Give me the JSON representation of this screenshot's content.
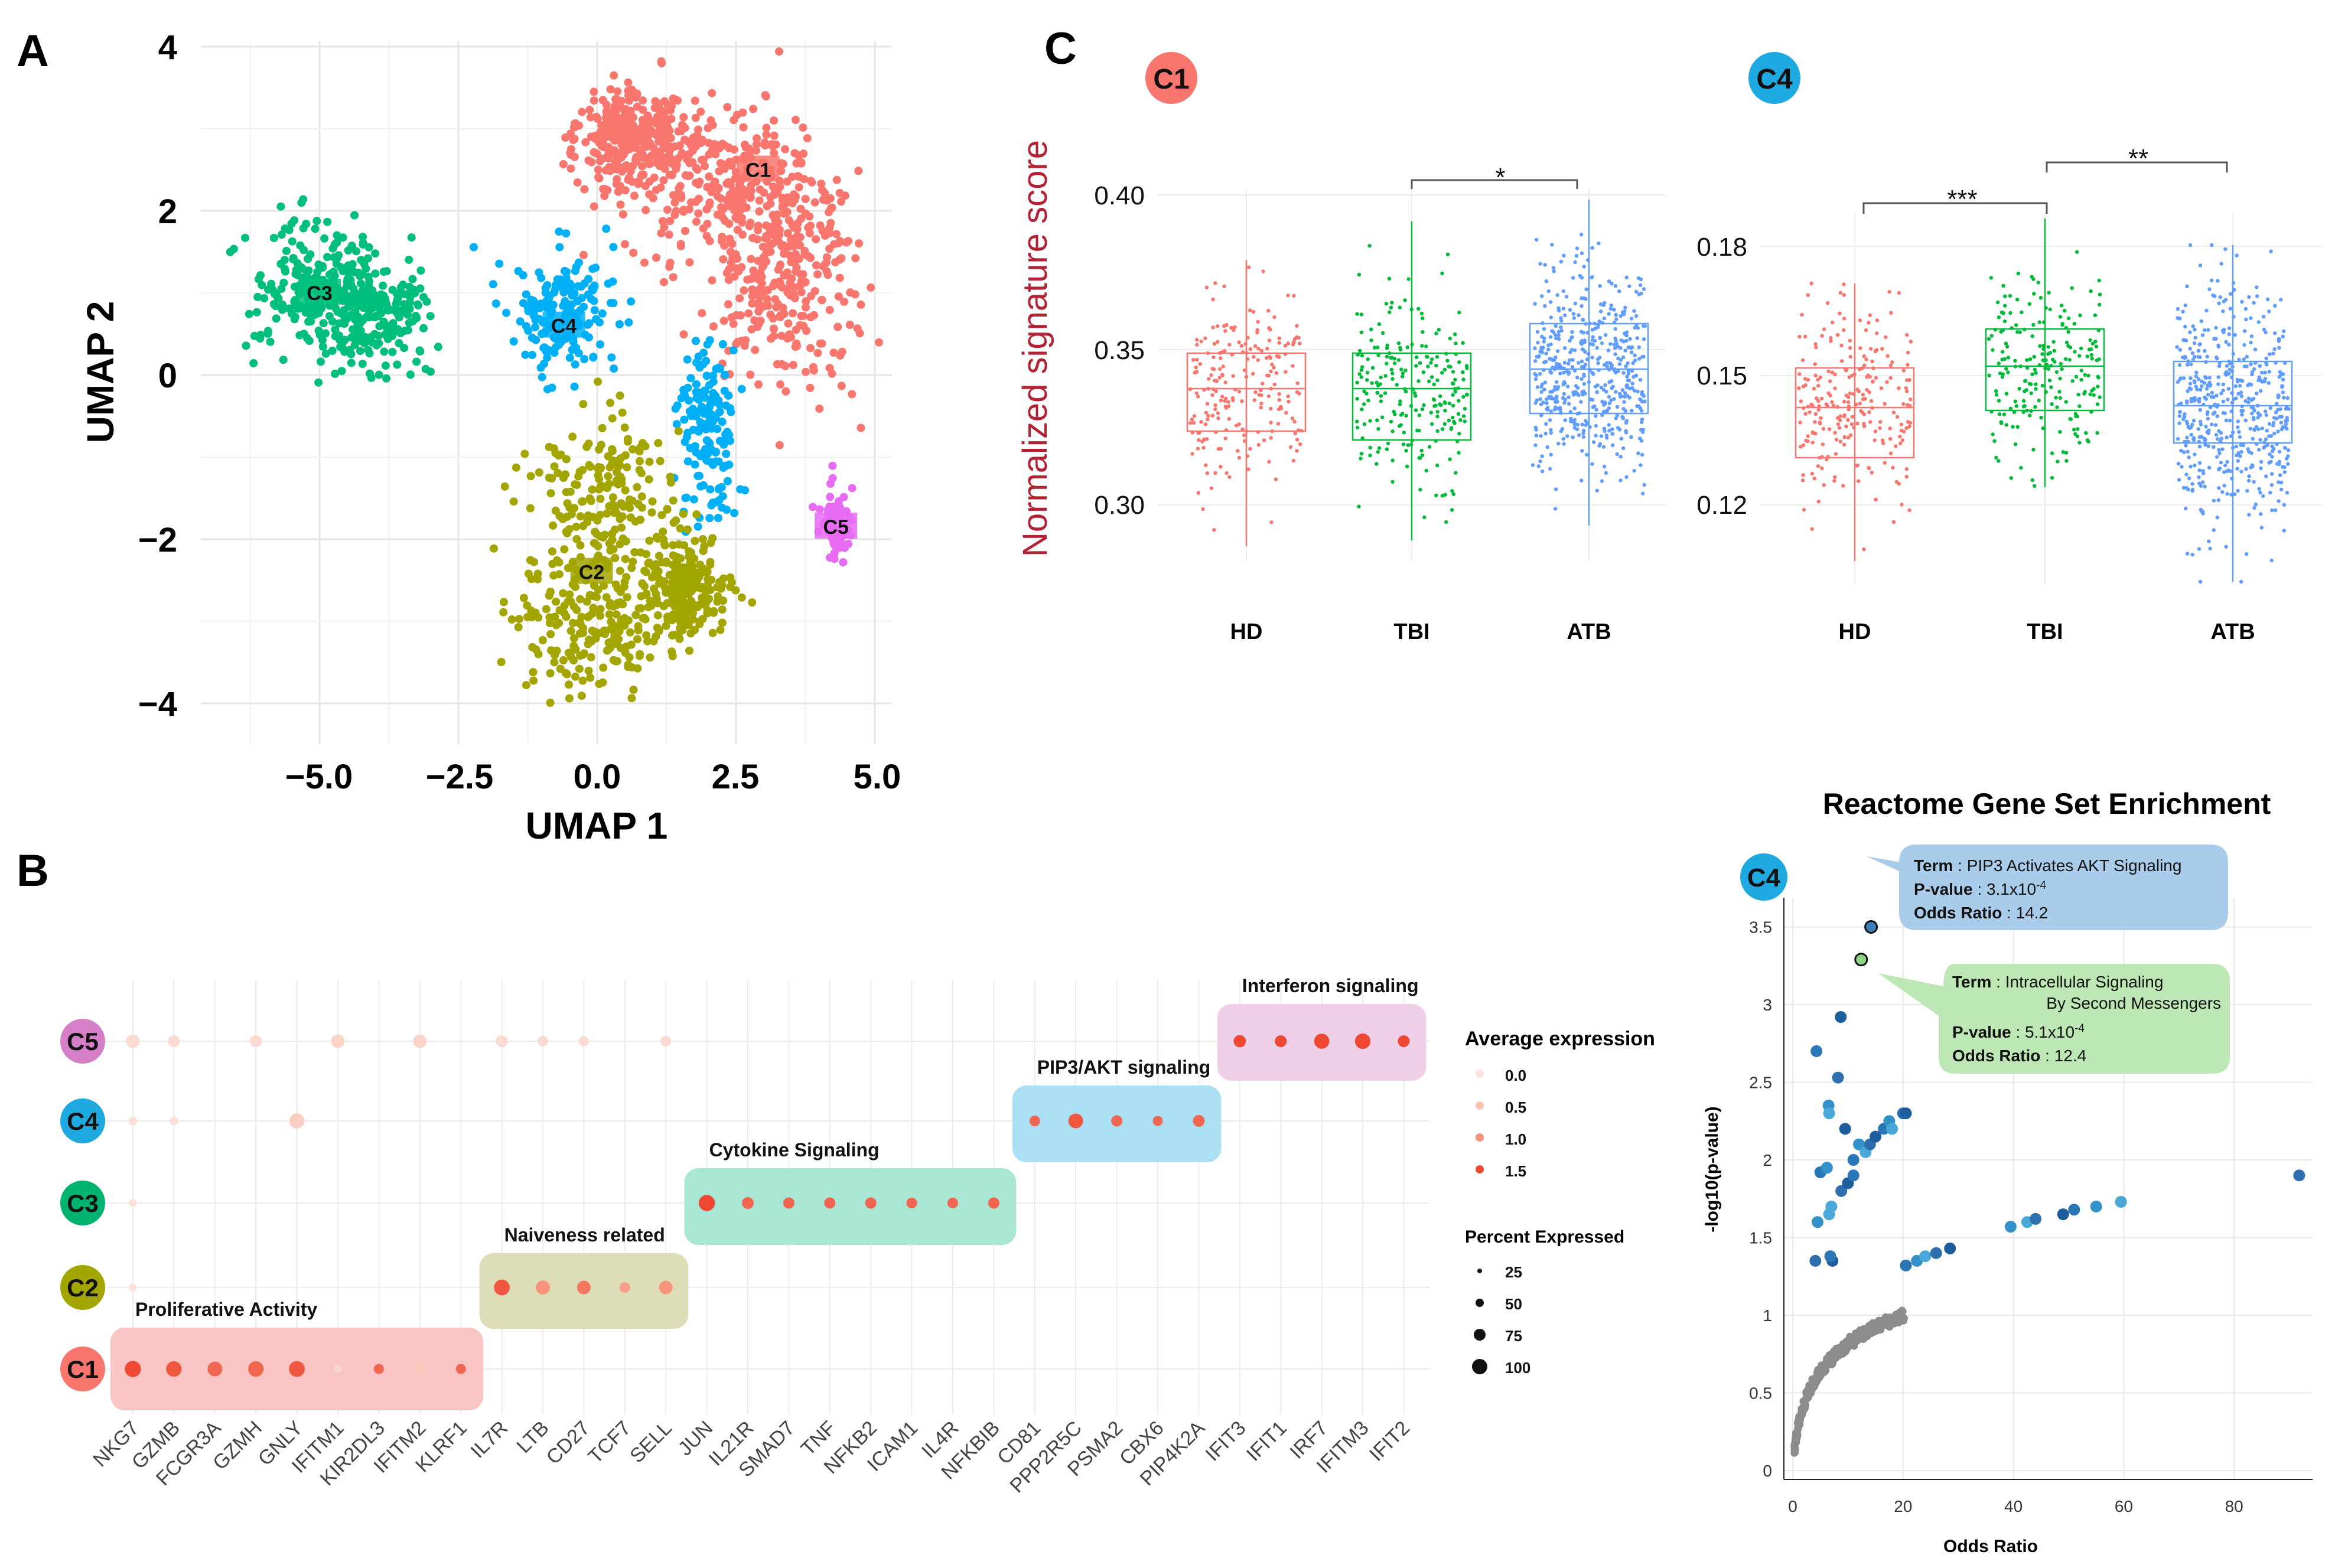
{
  "panels": {
    "a": "A",
    "b": "B",
    "c": "C"
  },
  "umap": {
    "xlabel": "UMAP 1",
    "ylabel": "UMAP 2",
    "xticks": [
      "−5.0",
      "−2.5",
      "0.0",
      "2.5",
      "5.0"
    ],
    "yticks": [
      "4",
      "2",
      "0",
      "−2",
      "−4"
    ],
    "clusters": [
      {
        "id": "C1",
        "color": "#F8766D"
      },
      {
        "id": "C2",
        "color": "#A3A500"
      },
      {
        "id": "C3",
        "color": "#00BF7D"
      },
      {
        "id": "C4",
        "color": "#00B0F6"
      },
      {
        "id": "C5",
        "color": "#E76BF3"
      }
    ]
  },
  "signature": {
    "ylabel": "Normalized signature score",
    "c1": {
      "badge": "C1",
      "groups": [
        "HD",
        "TBI",
        "ATB"
      ],
      "yticks": [
        "0.40",
        "0.35",
        "0.30"
      ],
      "sig": [
        "*"
      ]
    },
    "c4": {
      "badge": "C4",
      "groups": [
        "HD",
        "TBI",
        "ATB"
      ],
      "yticks": [
        "0.18",
        "0.15",
        "0.12"
      ],
      "sig": [
        "***",
        "**"
      ]
    }
  },
  "dotplot": {
    "rows": [
      "C5",
      "C4",
      "C3",
      "C2",
      "C1"
    ],
    "genes": [
      "NKG7",
      "GZMB",
      "FCGR3A",
      "GZMH",
      "GNLY",
      "IFITM1",
      "KIR2DL3",
      "IFITM2",
      "KLRF1",
      "IL7R",
      "LTB",
      "CD27",
      "TCF7",
      "SELL",
      "JUN",
      "IL21R",
      "SMAD7",
      "TNF",
      "NFKB2",
      "ICAM1",
      "IL4R",
      "NFKBIB",
      "CD81",
      "PPP2R5C",
      "PSMA2",
      "CBX6",
      "PIP4K2A",
      "IFIT3",
      "IFIT1",
      "IRF7",
      "IFITM3",
      "IFIT2"
    ],
    "groups": [
      {
        "label": "Proliferative Activity",
        "row": "C1",
        "color": "#F9C4C4"
      },
      {
        "label": "Naiveness related",
        "row": "C2",
        "color": "#DDDDB8"
      },
      {
        "label": "Cytokine Signaling",
        "row": "C3",
        "color": "#A9E6D3"
      },
      {
        "label": "PIP3/AKT signaling",
        "row": "C4",
        "color": "#ABDFF3"
      },
      {
        "label": "Interferon signaling",
        "row": "C5",
        "color": "#F0D0E9"
      }
    ],
    "legend": {
      "avg_title": "Average expression",
      "avg_levels": [
        "0.0",
        "0.5",
        "1.0",
        "1.5"
      ],
      "pct_title": "Percent Expressed",
      "pct_levels": [
        "25",
        "50",
        "75",
        "100"
      ]
    },
    "values": [
      {
        "row": "C1",
        "gene": "NKG7",
        "avg": 1.5,
        "pct": 95
      },
      {
        "row": "C1",
        "gene": "GZMB",
        "avg": 1.4,
        "pct": 85
      },
      {
        "row": "C1",
        "gene": "FCGR3A",
        "avg": 1.3,
        "pct": 75
      },
      {
        "row": "C1",
        "gene": "GZMH",
        "avg": 1.3,
        "pct": 85
      },
      {
        "row": "C1",
        "gene": "GNLY",
        "avg": 1.4,
        "pct": 90
      },
      {
        "row": "C1",
        "gene": "IFITM1",
        "avg": 0.3,
        "pct": 15
      },
      {
        "row": "C1",
        "gene": "KIR2DL3",
        "avg": 1.3,
        "pct": 25
      },
      {
        "row": "C1",
        "gene": "IFITM2",
        "avg": 0.5,
        "pct": 60
      },
      {
        "row": "C1",
        "gene": "KLRF1",
        "avg": 1.3,
        "pct": 25
      },
      {
        "row": "C2",
        "gene": "IL7R",
        "avg": 1.4,
        "pct": 90
      },
      {
        "row": "C2",
        "gene": "LTB",
        "avg": 1.0,
        "pct": 65
      },
      {
        "row": "C2",
        "gene": "CD27",
        "avg": 1.2,
        "pct": 60
      },
      {
        "row": "C2",
        "gene": "TCF7",
        "avg": 0.9,
        "pct": 30
      },
      {
        "row": "C2",
        "gene": "SELL",
        "avg": 1.0,
        "pct": 60
      },
      {
        "row": "C3",
        "gene": "JUN",
        "avg": 1.5,
        "pct": 95
      },
      {
        "row": "C3",
        "gene": "IL21R",
        "avg": 1.3,
        "pct": 40
      },
      {
        "row": "C3",
        "gene": "SMAD7",
        "avg": 1.3,
        "pct": 35
      },
      {
        "row": "C3",
        "gene": "TNF",
        "avg": 1.3,
        "pct": 35
      },
      {
        "row": "C3",
        "gene": "NFKB2",
        "avg": 1.3,
        "pct": 35
      },
      {
        "row": "C3",
        "gene": "ICAM1",
        "avg": 1.3,
        "pct": 30
      },
      {
        "row": "C3",
        "gene": "IL4R",
        "avg": 1.3,
        "pct": 30
      },
      {
        "row": "C3",
        "gene": "NFKBIB",
        "avg": 1.3,
        "pct": 35
      },
      {
        "row": "C4",
        "gene": "CD81",
        "avg": 1.3,
        "pct": 30
      },
      {
        "row": "C4",
        "gene": "PPP2R5C",
        "avg": 1.4,
        "pct": 75
      },
      {
        "row": "C4",
        "gene": "PSMA2",
        "avg": 1.3,
        "pct": 35
      },
      {
        "row": "C4",
        "gene": "CBX6",
        "avg": 1.3,
        "pct": 25
      },
      {
        "row": "C4",
        "gene": "PIP4K2A",
        "avg": 1.3,
        "pct": 40
      },
      {
        "row": "C4",
        "gene": "GNLY",
        "avg": 0.4,
        "pct": 80
      },
      {
        "row": "C5",
        "gene": "IFIT3",
        "avg": 1.5,
        "pct": 45
      },
      {
        "row": "C5",
        "gene": "IFIT1",
        "avg": 1.5,
        "pct": 40
      },
      {
        "row": "C5",
        "gene": "IRF7",
        "avg": 1.5,
        "pct": 80
      },
      {
        "row": "C5",
        "gene": "IFITM3",
        "avg": 1.5,
        "pct": 85
      },
      {
        "row": "C5",
        "gene": "IFIT2",
        "avg": 1.5,
        "pct": 40
      },
      {
        "row": "C5",
        "gene": "NKG7",
        "avg": 0.2,
        "pct": 60
      },
      {
        "row": "C5",
        "gene": "GZMB",
        "avg": 0.2,
        "pct": 40
      },
      {
        "row": "C5",
        "gene": "GZMH",
        "avg": 0.2,
        "pct": 40
      },
      {
        "row": "C5",
        "gene": "IFITM1",
        "avg": 0.3,
        "pct": 60
      },
      {
        "row": "C5",
        "gene": "IFITM2",
        "avg": 0.3,
        "pct": 60
      },
      {
        "row": "C5",
        "gene": "IL7R",
        "avg": 0.2,
        "pct": 40
      },
      {
        "row": "C5",
        "gene": "LTB",
        "avg": 0.2,
        "pct": 30
      },
      {
        "row": "C5",
        "gene": "CD27",
        "avg": 0.2,
        "pct": 25
      },
      {
        "row": "C5",
        "gene": "SELL",
        "avg": 0.2,
        "pct": 30
      },
      {
        "row": "C4",
        "gene": "NKG7",
        "avg": 0.1,
        "pct": 15
      },
      {
        "row": "C4",
        "gene": "GZMB",
        "avg": 0.1,
        "pct": 15
      },
      {
        "row": "C3",
        "gene": "NKG7",
        "avg": 0.1,
        "pct": 10
      },
      {
        "row": "C2",
        "gene": "NKG7",
        "avg": 0.1,
        "pct": 10
      }
    ]
  },
  "reactome": {
    "title": "Reactome Gene Set Enrichment",
    "badge": "C4",
    "xlabel": "Odds Ratio",
    "ylabel": "-log10(p-value)",
    "xticks": [
      "0",
      "20",
      "40",
      "60",
      "80"
    ],
    "yticks": [
      "0",
      "0.5",
      "1",
      "1.5",
      "2",
      "2.5",
      "3",
      "3.5"
    ],
    "callouts": [
      {
        "term_key": "Term",
        "term": ": PIP3 Activates AKT Signaling",
        "term2": "",
        "p_key": "P-value",
        "p_val": ": 3.1x10",
        "p_exp": "-4",
        "or_key": "Odds Ratio",
        "or_val": ": 14.2",
        "point": [
          14.2,
          3.5
        ],
        "color": "#A9CCEA"
      },
      {
        "term_key": "Term",
        "term": ": Intracellular Signaling",
        "term2": "By Second Messengers",
        "p_key": "P-value",
        "p_val": ": 5.1x10",
        "p_exp": "-4",
        "or_key": "Odds Ratio",
        "or_val": ": 12.4",
        "point": [
          12.4,
          3.29
        ],
        "color": "#BDE8B5"
      }
    ],
    "highlight_points": [
      [
        8.7,
        2.92
      ],
      [
        4.3,
        2.7
      ],
      [
        6.5,
        2.35
      ],
      [
        6.6,
        2.3
      ],
      [
        8.2,
        2.53
      ],
      [
        9.5,
        2.2
      ],
      [
        11,
        2.0
      ],
      [
        12,
        2.1
      ],
      [
        13.2,
        2.05
      ],
      [
        14,
        2.1
      ],
      [
        15,
        2.15
      ],
      [
        16.5,
        2.2
      ],
      [
        17.5,
        2.25
      ],
      [
        18,
        2.2
      ],
      [
        20,
        2.3
      ],
      [
        20.5,
        2.3
      ],
      [
        5,
        1.92
      ],
      [
        6.2,
        1.95
      ],
      [
        7,
        1.7
      ],
      [
        8.8,
        1.8
      ],
      [
        10,
        1.85
      ],
      [
        11,
        1.9
      ],
      [
        4.5,
        1.6
      ],
      [
        6.6,
        1.65
      ],
      [
        4.1,
        1.35
      ],
      [
        7.2,
        1.35
      ],
      [
        6.8,
        1.38
      ],
      [
        22.5,
        1.35
      ],
      [
        24,
        1.38
      ],
      [
        26,
        1.4
      ],
      [
        28.5,
        1.43
      ],
      [
        20.5,
        1.32
      ],
      [
        39.5,
        1.57
      ],
      [
        42.5,
        1.6
      ],
      [
        44,
        1.62
      ],
      [
        49,
        1.65
      ],
      [
        51,
        1.68
      ],
      [
        55,
        1.7
      ],
      [
        59.5,
        1.73
      ],
      [
        91.8,
        1.9
      ]
    ]
  }
}
